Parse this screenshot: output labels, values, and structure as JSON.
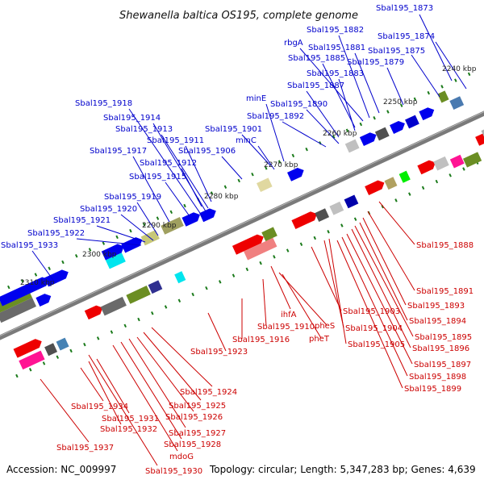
{
  "title": "Shewanella baltica OS195, complete genome",
  "footer": {
    "accession": "Accession: NC_009997",
    "summary": "Topology: circular; Length: 5,347,283 bp; Genes: 4,639"
  },
  "colors": {
    "upper_label": "#0000cc",
    "lower_label": "#cc0000",
    "backbone": "#7a7a7a",
    "forward_gene": "#0000ee",
    "reverse_gene": "#ee0000",
    "tick": "#1a7a1a"
  },
  "kbp_marks": [
    "2240 kbp",
    "2250 kbp",
    "2260 kbp",
    "2270 kbp",
    "2280 kbp",
    "2290 kbp",
    "2300 kbp",
    "2310 kbp"
  ],
  "upper_labels": [
    "Sbal195_1873",
    "Sbal195_1874",
    "Sbal195_1875",
    "Sbal195_1879",
    "Sbal195_1881",
    "Sbal195_1882",
    "rbgA",
    "Sbal195_1885",
    "Sbal195_1883",
    "Sbal195_1887",
    "minE",
    "Sbal195_1890",
    "Sbal195_1892",
    "Sbal195_1918",
    "Sbal195_1914",
    "Sbal195_1913",
    "Sbal195_1901",
    "Sbal195_1911",
    "minC",
    "Sbal195_1917",
    "Sbal195_1906",
    "Sbal195_1912",
    "Sbal195_1915",
    "Sbal195_1919",
    "Sbal195_1920",
    "Sbal195_1921",
    "Sbal195_1922",
    "Sbal195_1933"
  ],
  "lower_labels": [
    "Sbal195_1888",
    "Sbal195_1891",
    "Sbal195_1893",
    "Sbal195_1894",
    "Sbal195_1895",
    "Sbal195_1896",
    "Sbal195_1897",
    "Sbal195_1898",
    "Sbal195_1899",
    "Sbal195_1903",
    "Sbal195_1904",
    "Sbal195_1905",
    "ihfA",
    "pheS",
    "pheT",
    "Sbal195_1910",
    "Sbal195_1916",
    "Sbal195_1923",
    "Sbal195_1924",
    "Sbal195_1925",
    "Sbal195_1926",
    "Sbal195_1927",
    "Sbal195_1928",
    "mdoG",
    "Sbal195_1930",
    "Sbal195_1931",
    "Sbal195_1932",
    "Sbal195_1934",
    "Sbal195_1937"
  ]
}
